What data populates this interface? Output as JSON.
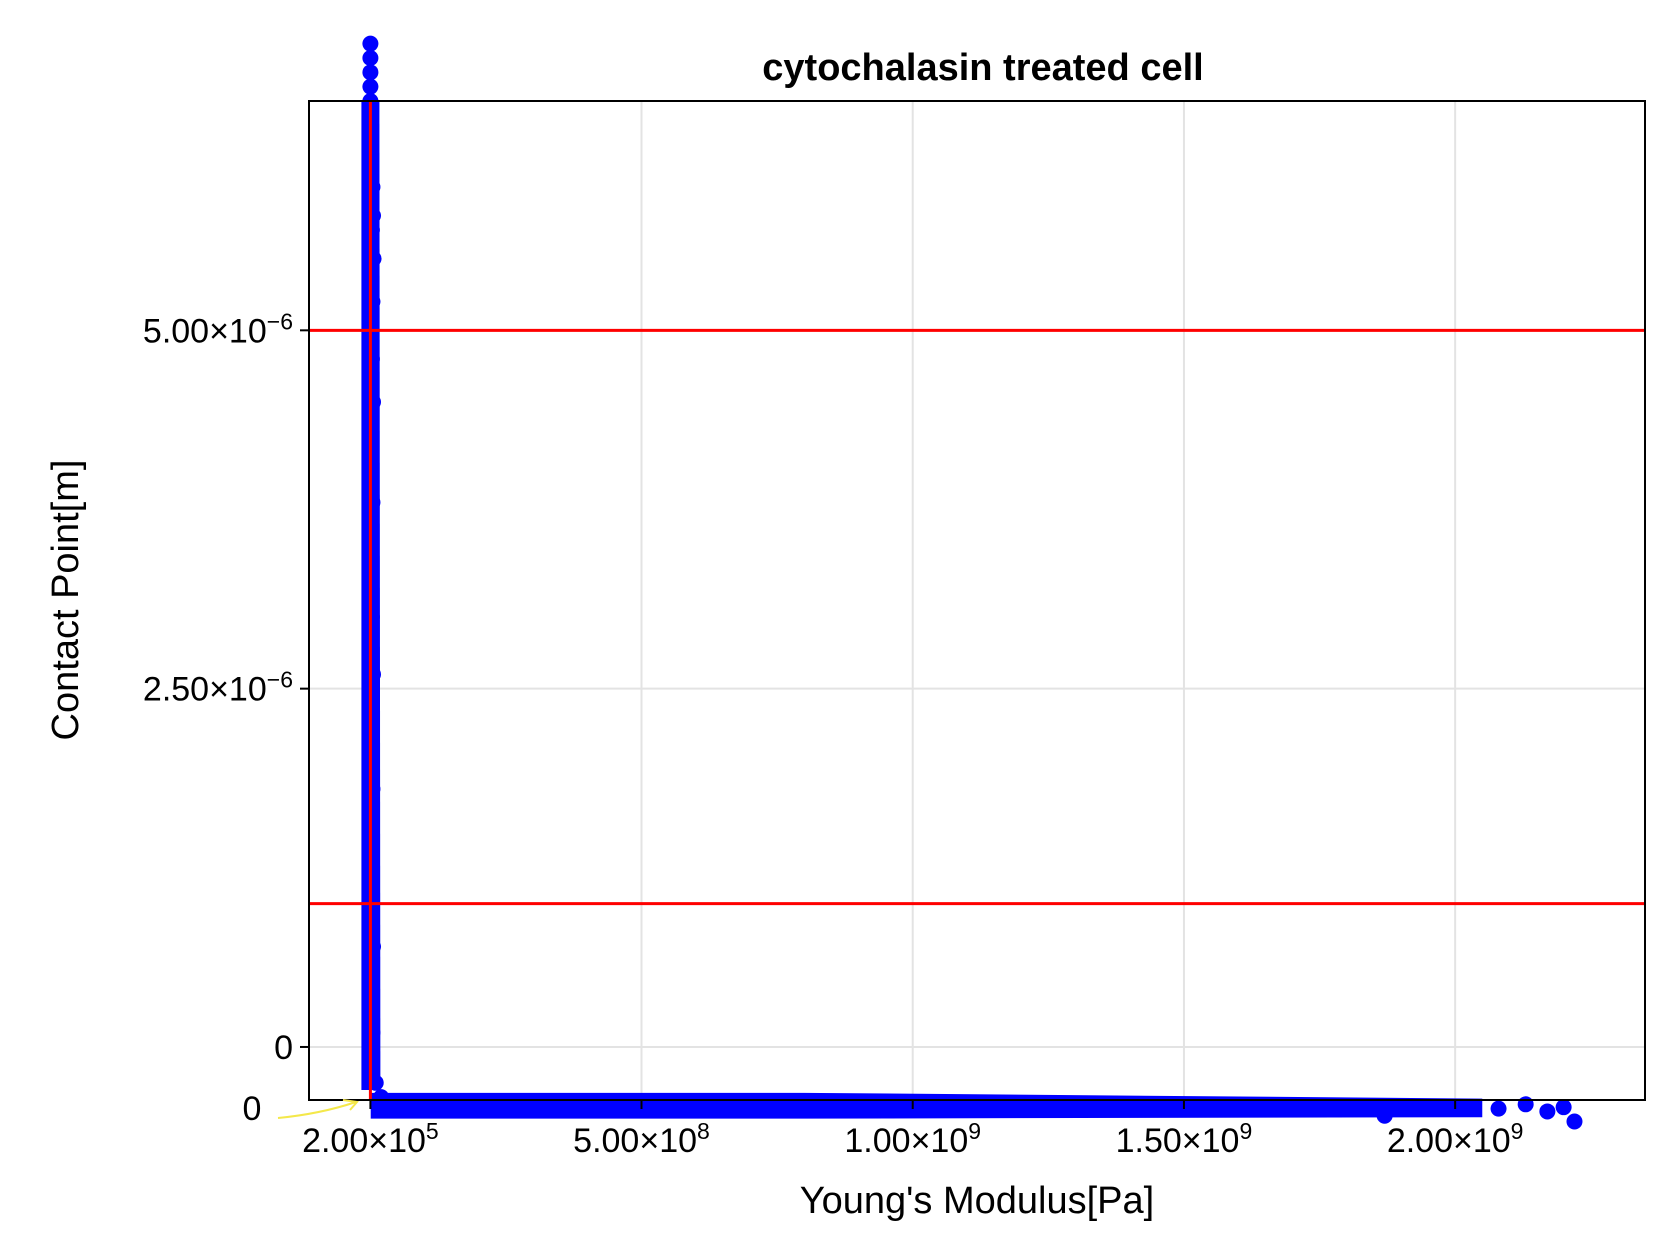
{
  "chart_data": {
    "type": "scatter",
    "title": "cytochalasin treated cell",
    "xlabel": "Young's Modulus[Pa]",
    "ylabel": "Contact Point[m]",
    "xlim": [
      -113000000,
      2350000000
    ],
    "ylim": [
      -3.7e-07,
      6.6e-06
    ],
    "grid": true,
    "marker_color": "#0000ff",
    "x_ticks": [
      {
        "value": 200000,
        "label": "2.00×10",
        "exp": "5"
      },
      {
        "value": 500000000,
        "label": "5.00×10",
        "exp": "8"
      },
      {
        "value": 1000000000,
        "label": "1.00×10",
        "exp": "9"
      },
      {
        "value": 1500000000,
        "label": "1.50×10",
        "exp": "9"
      },
      {
        "value": 2000000000,
        "label": "2.00×10",
        "exp": "9"
      }
    ],
    "y_ticks": [
      {
        "value": 0,
        "label": "0",
        "exp": ""
      },
      {
        "value": 2.5e-06,
        "label": "2.50×10",
        "exp": "−6"
      },
      {
        "value": 5e-06,
        "label": "5.00×10",
        "exp": "−6"
      }
    ],
    "reference_lines": {
      "color": "#ff0000",
      "vertical_x": [
        200000
      ],
      "horizontal_y": [
        5e-06,
        1e-06
      ]
    },
    "annotation": {
      "text": "0",
      "arrow_color": "#f4e84a"
    },
    "series": [
      {
        "points": [
          [
            200000,
            7e-06
          ],
          [
            200000,
            6.9e-06
          ],
          [
            200000,
            6.8e-06
          ],
          [
            200000,
            6.7e-06
          ],
          [
            200000,
            6.6e-06
          ],
          [
            200000,
            6.4e-06
          ],
          [
            200000,
            6.2e-06
          ],
          [
            200000,
            6.1e-06
          ],
          [
            1000000,
            6.1e-06
          ],
          [
            4000000,
            6e-06
          ],
          [
            2000000,
            5.9e-06
          ],
          [
            5000000,
            5.8e-06
          ],
          [
            3000000,
            5.7e-06
          ],
          [
            1000000,
            5.6e-06
          ],
          [
            6000000,
            5.5e-06
          ],
          [
            2000000,
            5.4e-06
          ],
          [
            4000000,
            5.2e-06
          ],
          [
            1000000,
            5e-06
          ],
          [
            3000000,
            4.8e-06
          ],
          [
            5000000,
            4.5e-06
          ],
          [
            2000000,
            4.2e-06
          ],
          [
            4000000,
            3.8e-06
          ],
          [
            1000000,
            3.5e-06
          ],
          [
            3000000,
            3e-06
          ],
          [
            5000000,
            2.6e-06
          ],
          [
            2000000,
            2.2e-06
          ],
          [
            4000000,
            1.8e-06
          ],
          [
            1000000,
            1.4e-06
          ],
          [
            3000000,
            1e-06
          ],
          [
            5000000,
            7e-07
          ],
          [
            2000000,
            4e-07
          ],
          [
            4000000,
            1e-07
          ],
          [
            10000000,
            -2.5e-07
          ],
          [
            20000000,
            -3.5e-07
          ],
          [
            30000000,
            -4e-07
          ],
          [
            2200000000,
            -4.2e-07
          ],
          [
            2130000000,
            -4e-07
          ],
          [
            2080000000,
            -4.3e-07
          ],
          [
            2170000000,
            -4.5e-07
          ],
          [
            2220000000,
            -5.2e-07
          ],
          [
            1870000000,
            -4.8e-07
          ]
        ]
      }
    ]
  }
}
